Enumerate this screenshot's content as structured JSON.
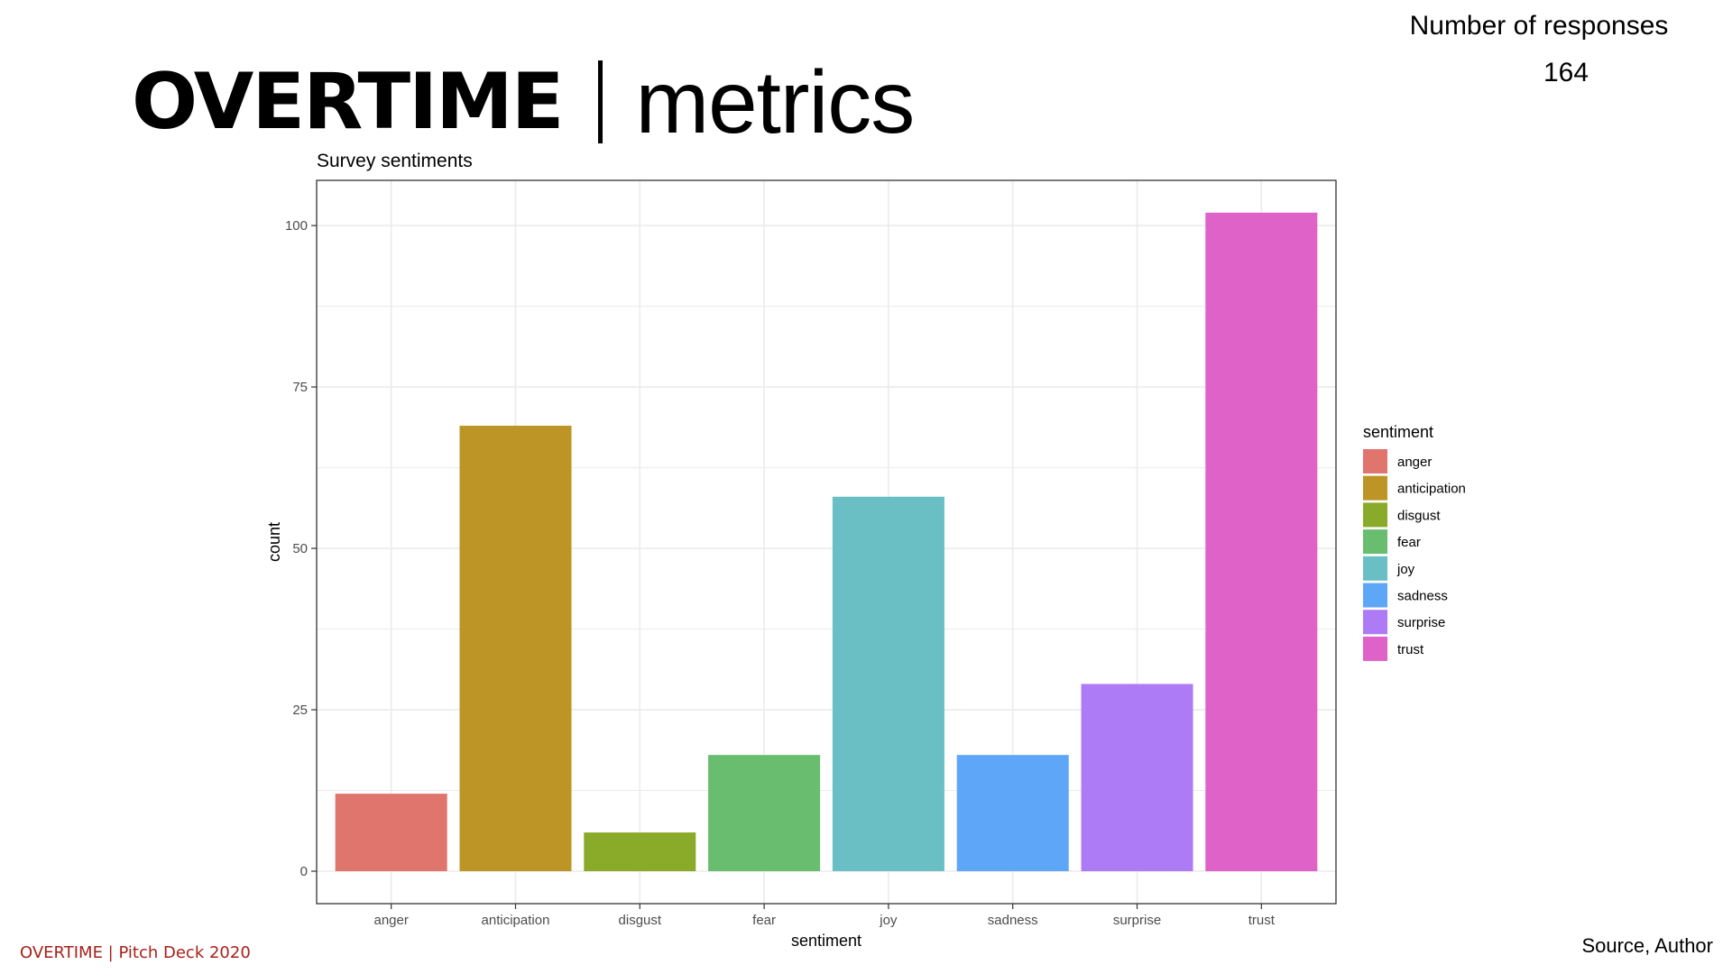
{
  "header": {
    "title_bold": "OVERTIME",
    "title_light": "metrics"
  },
  "responses": {
    "label": "Number of responses",
    "value": "164"
  },
  "footer": {
    "left": "OVERTIME |  Pitch Deck 2020",
    "right": "Source, Author"
  },
  "colors": {
    "footer_left": "#a8201a",
    "panel_border": "#333333",
    "grid": "#ebebeb"
  },
  "chart_data": {
    "type": "bar",
    "title": "Survey sentiments",
    "xlabel": "sentiment",
    "ylabel": "count",
    "categories": [
      "anger",
      "anticipation",
      "disgust",
      "fear",
      "joy",
      "sadness",
      "surprise",
      "trust"
    ],
    "values": [
      12,
      69,
      6,
      18,
      58,
      18,
      29,
      102
    ],
    "colors": [
      "#E0756E",
      "#BC9526",
      "#8AAB2A",
      "#68BD6E",
      "#69BFC3",
      "#5EA7F8",
      "#AE7BF6",
      "#DF62C8"
    ],
    "ylim": [
      0,
      107
    ],
    "yticks": [
      0,
      25,
      50,
      75,
      100
    ],
    "grid": true,
    "legend": {
      "title": "sentiment",
      "placement": "right"
    }
  }
}
